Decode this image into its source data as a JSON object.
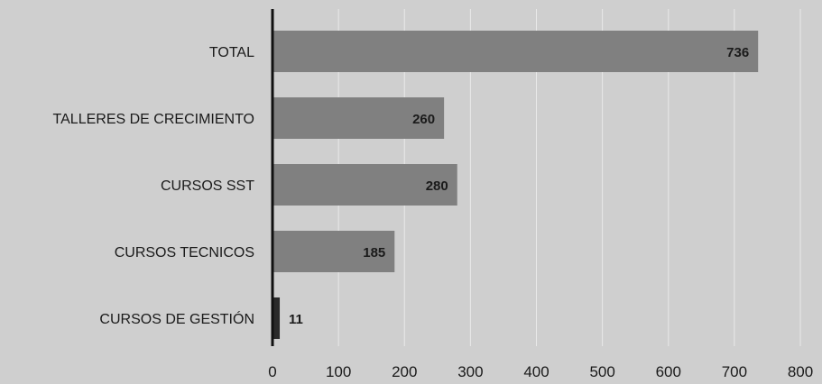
{
  "chart_data": {
    "type": "bar",
    "orientation": "horizontal",
    "categories": [
      "TOTAL",
      "TALLERES DE CRECIMIENTO",
      "CURSOS SST",
      "CURSOS TECNICOS",
      "CURSOS DE GESTIÓN"
    ],
    "values": [
      736,
      260,
      280,
      185,
      11
    ],
    "data_labels": [
      "736",
      "260",
      "280",
      "185",
      "11"
    ],
    "xlim": [
      0,
      800
    ],
    "x_ticks": [
      0,
      100,
      200,
      300,
      400,
      500,
      600,
      700,
      800
    ],
    "x_tick_labels": [
      "0",
      "100",
      "200",
      "300",
      "400",
      "500",
      "600",
      "700",
      "800"
    ],
    "grid": "vertical",
    "legend": "none",
    "colors": {
      "background": "#cfcfcf",
      "bar": "#808080",
      "bar_small": "#2a2a2a",
      "axis": "#111111",
      "grid": "#e9e9e9"
    }
  }
}
